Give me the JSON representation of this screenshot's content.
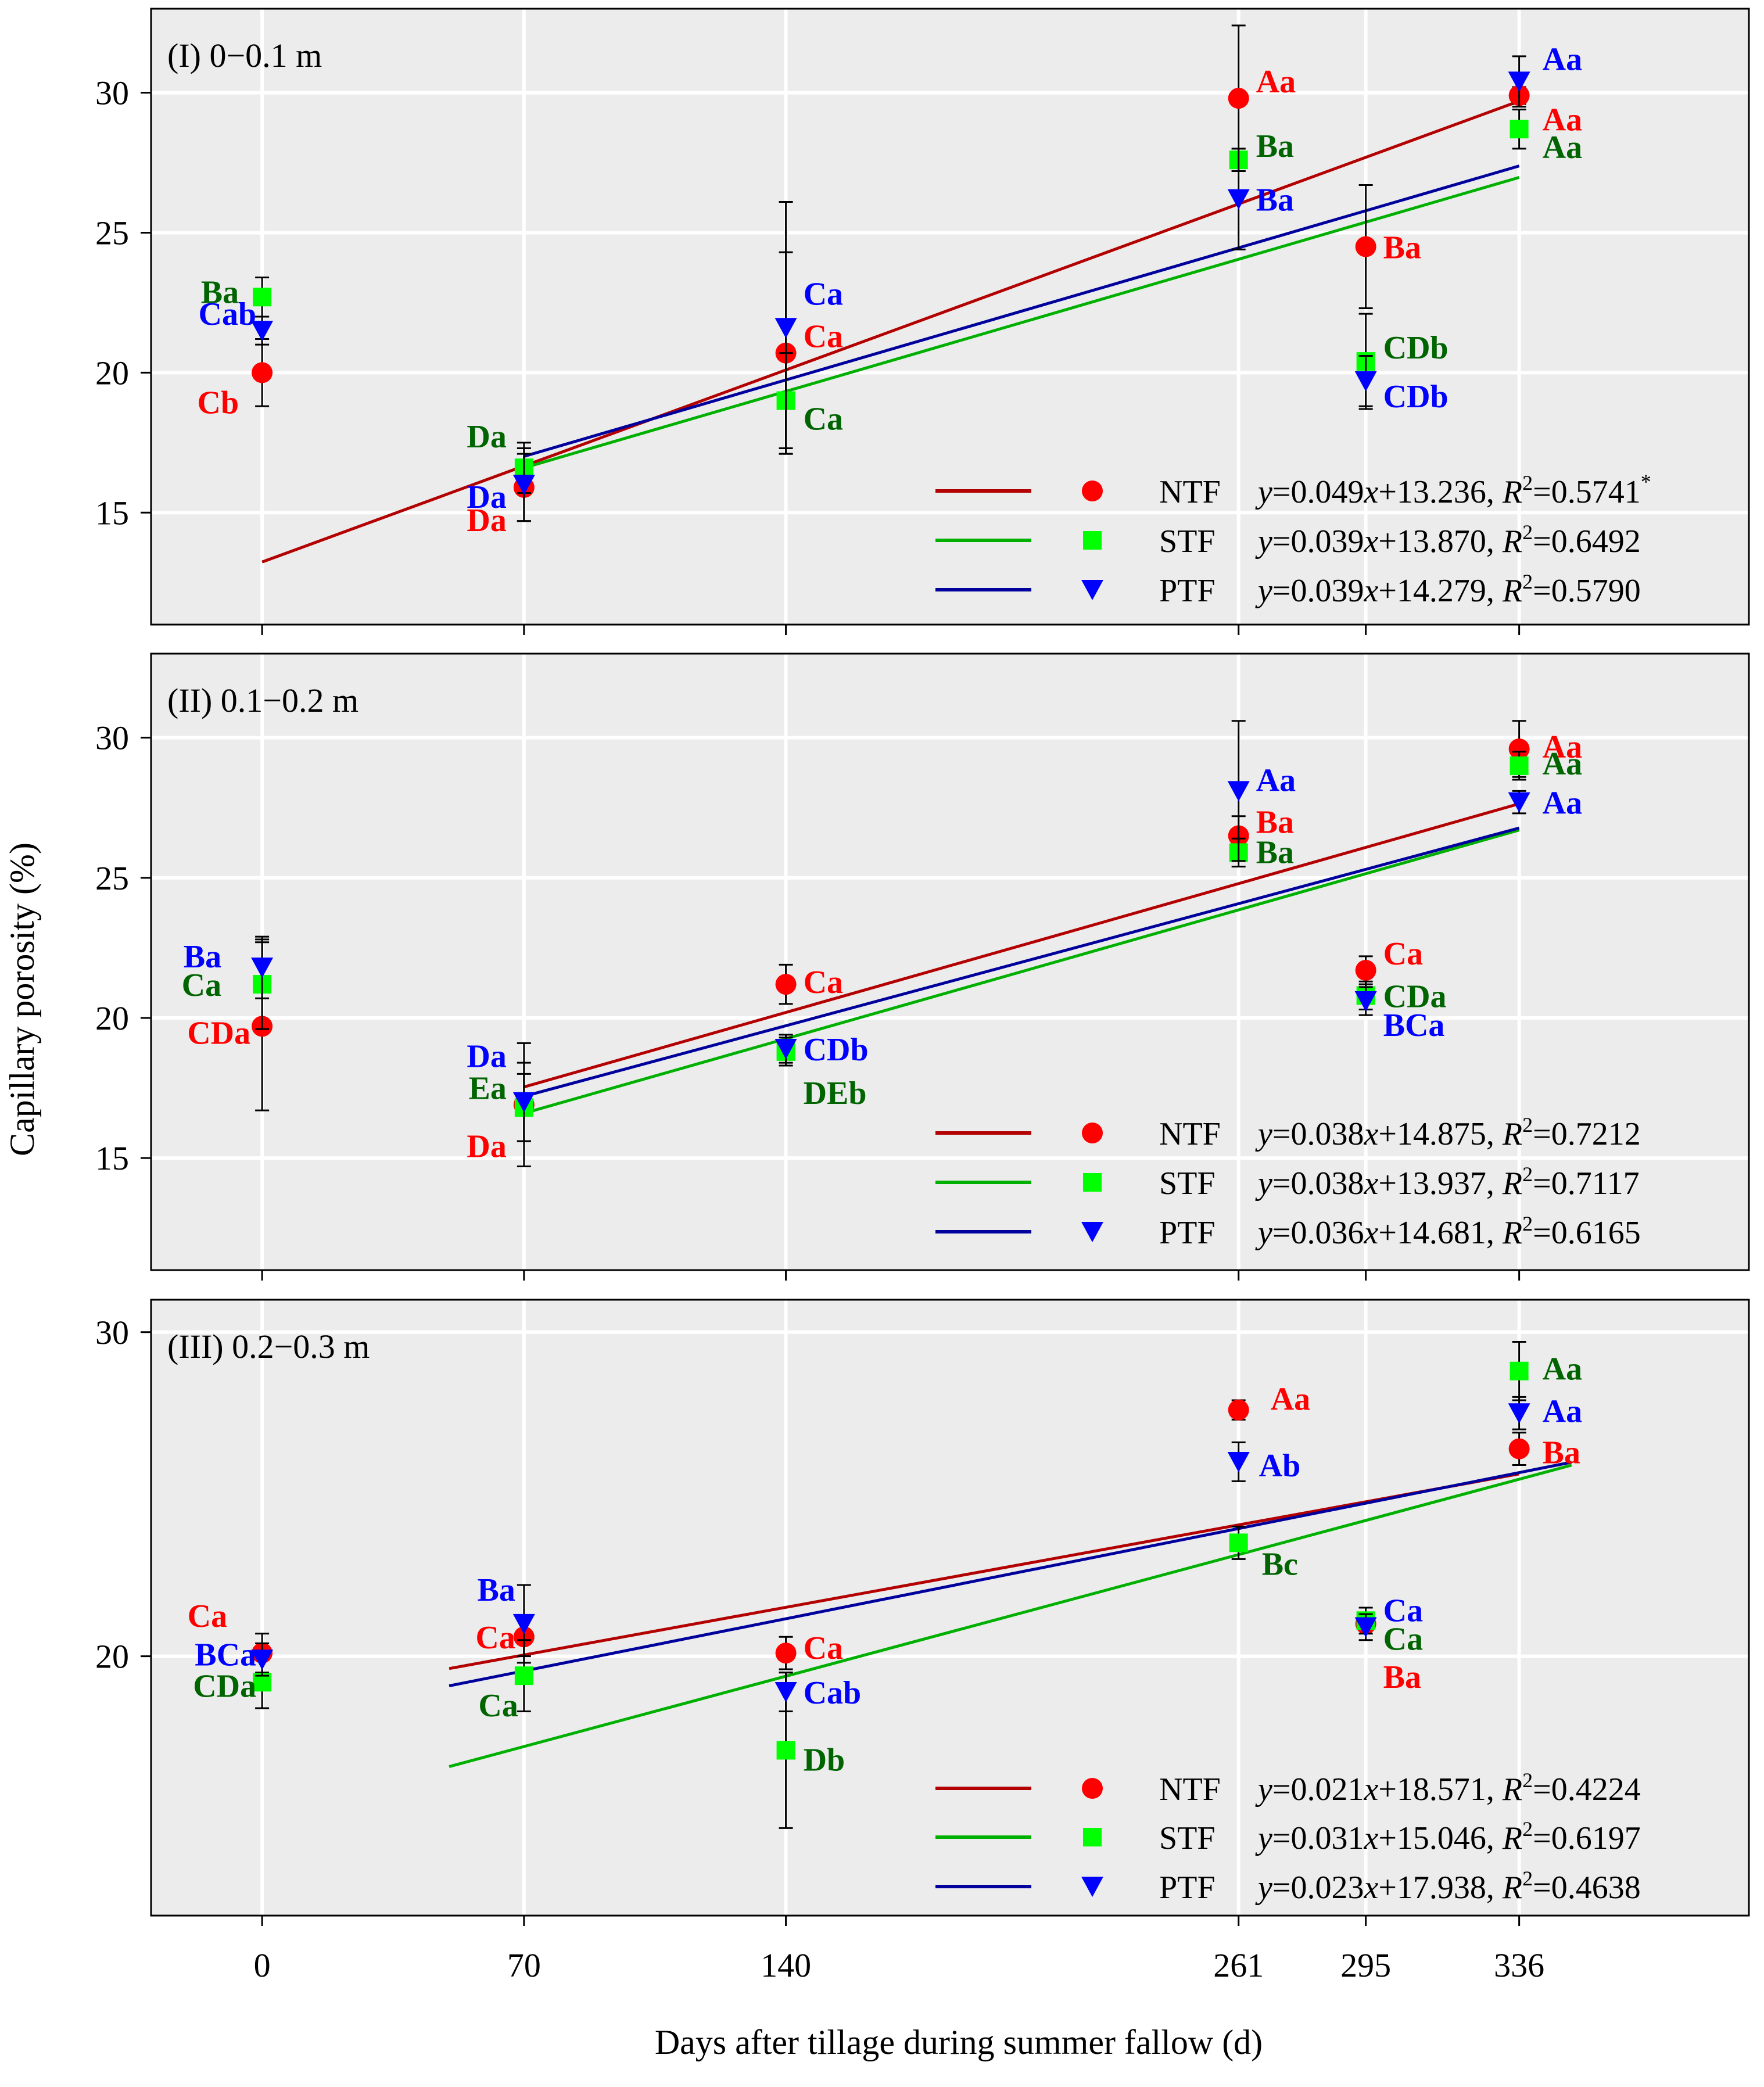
{
  "figure": {
    "ylabel": "Capillary porosity (%)",
    "xlabel": "Days after tillage during summer fallow (d)",
    "xticks": [
      0,
      70,
      140,
      261,
      295,
      336
    ]
  },
  "colors": {
    "plot_bg": "#ececec",
    "grid": "#ffffff",
    "NTF_marker": "#ff0000",
    "NTF_line": "#b30000",
    "STF_marker": "#00ff00",
    "STF_line": "#00b000",
    "PTF_marker": "#0000ff",
    "PTF_line": "#00009c",
    "label_red": "#ff0000",
    "label_green": "#006400",
    "label_blue": "#0000ff"
  },
  "legend_order": [
    "NTF",
    "STF",
    "PTF"
  ],
  "chart_data": [
    {
      "type": "scatter",
      "title": "(I) 0−0.1 m",
      "ylim": [
        11,
        33
      ],
      "yticks": [
        15,
        20,
        25,
        30
      ],
      "x": [
        0,
        70,
        140,
        261,
        295,
        336
      ],
      "series": [
        {
          "name": "NTF",
          "marker": "circle",
          "y": [
            20.0,
            15.9,
            20.7,
            29.8,
            24.5,
            29.9
          ],
          "err": [
            1.2,
            1.2,
            3.6,
            2.6,
            2.2,
            0.3
          ],
          "labels": [
            "Cb",
            "Da",
            "Ca",
            "Aa",
            "Ba",
            "Aa"
          ],
          "fit": {
            "equation": "=0.049x+13.236, R²=0.5741*",
            "slope": 0.049,
            "intercept": 13.236,
            "xrange": [
              0,
              336
            ]
          }
        },
        {
          "name": "STF",
          "marker": "square",
          "y": [
            22.7,
            16.6,
            19.0,
            27.6,
            20.4,
            28.7
          ],
          "err": [
            0.7,
            0.9,
            1.7,
            0.4,
            1.7,
            0.7
          ],
          "labels": [
            "Ba",
            "Da",
            "Ca",
            "Ba",
            "CDb",
            "Aa"
          ],
          "fit": {
            "equation": "=0.039x+13.870, R²=0.6492",
            "slope": 0.039,
            "intercept": 13.87,
            "xrange": [
              70,
              336
            ]
          }
        },
        {
          "name": "PTF",
          "marker": "triangle",
          "y": [
            21.5,
            16.0,
            21.6,
            26.2,
            19.7,
            30.4
          ],
          "err": [
            0.5,
            1.3,
            4.5,
            1.8,
            0.9,
            0.9
          ],
          "labels": [
            "Cab",
            "Da",
            "Ca",
            "Ba",
            "CDb",
            "Aa"
          ],
          "fit": {
            "equation": "=0.039x+14.279, R²=0.5790",
            "slope": 0.039,
            "intercept": 14.279,
            "xrange": [
              70,
              336
            ]
          }
        }
      ]
    },
    {
      "type": "scatter",
      "title": "(II) 0.1−0.2 m",
      "ylim": [
        11,
        33
      ],
      "yticks": [
        15,
        20,
        25,
        30
      ],
      "x": [
        0,
        70,
        140,
        261,
        295,
        336
      ],
      "series": [
        {
          "name": "NTF",
          "marker": "circle",
          "y": [
            19.7,
            16.9,
            21.2,
            26.5,
            21.7,
            29.6
          ],
          "err": [
            3.0,
            2.2,
            0.7,
            0.7,
            0.5,
            1.0
          ],
          "labels": [
            "CDa",
            "Da",
            "Ca",
            "Ba",
            "Ca",
            "Aa"
          ],
          "fit": {
            "equation": "=0.038x+14.875, R²=0.7212",
            "slope": 0.038,
            "intercept": 14.875,
            "xrange": [
              70,
              336
            ]
          }
        },
        {
          "name": "STF",
          "marker": "square",
          "y": [
            21.2,
            16.8,
            18.8,
            25.9,
            20.8,
            29.0
          ],
          "err": [
            1.6,
            1.2,
            0.5,
            0.5,
            0.5,
            0.5
          ],
          "labels": [
            "Ca",
            "Ea",
            "DEb",
            "Ba",
            "CDa",
            "Aa"
          ],
          "fit": {
            "equation": "=0.038x+13.937, R²=0.7117",
            "slope": 0.038,
            "intercept": 13.937,
            "xrange": [
              70,
              336
            ]
          }
        },
        {
          "name": "PTF",
          "marker": "triangle",
          "y": [
            21.8,
            17.0,
            18.9,
            28.1,
            20.6,
            27.7
          ],
          "err": [
            1.1,
            1.4,
            0.5,
            2.5,
            0.5,
            0.4
          ],
          "labels": [
            "Ba",
            "Da",
            "CDb",
            "Aa",
            "BCa",
            "Aa"
          ],
          "fit": {
            "equation": "=0.036x+14.681, R²=0.6165",
            "slope": 0.036,
            "intercept": 14.681,
            "xrange": [
              70,
              336
            ]
          }
        }
      ]
    },
    {
      "type": "scatter",
      "title": "(III) 0.2−0.3 m",
      "ylim": [
        12,
        31
      ],
      "yticks": [
        20,
        30
      ],
      "x": [
        0,
        70,
        140,
        261,
        295,
        336
      ],
      "series": [
        {
          "name": "NTF",
          "marker": "circle",
          "y": [
            20.1,
            20.6,
            20.1,
            27.6,
            21.0,
            26.4
          ],
          "err": [
            0.6,
            0.6,
            0.5,
            0.3,
            0.3,
            0.5
          ],
          "labels": [
            "Ca",
            "Ca",
            "Ca",
            "Aa",
            "Ba",
            "Ba"
          ],
          "fit": {
            "equation": "=0.021x+18.571, R²=0.4224",
            "slope": 0.021,
            "intercept": 18.571,
            "xrange": [
              50,
              336
            ]
          }
        },
        {
          "name": "STF",
          "marker": "square",
          "y": [
            19.2,
            19.4,
            17.1,
            23.5,
            21.1,
            28.8
          ],
          "err": [
            0.8,
            1.1,
            2.4,
            0.5,
            0.4,
            0.9
          ],
          "labels": [
            "CDa",
            "Ca",
            "Db",
            "Bc",
            "Ca",
            "Aa"
          ],
          "fit": {
            "equation": "=0.031x+15.046, R²=0.6197",
            "slope": 0.031,
            "intercept": 15.046,
            "xrange": [
              50,
              350
            ]
          }
        },
        {
          "name": "PTF",
          "marker": "triangle",
          "y": [
            19.9,
            21.0,
            18.9,
            26.0,
            20.9,
            27.5
          ],
          "err": [
            0.5,
            1.2,
            0.6,
            0.6,
            0.4,
            0.5
          ],
          "labels": [
            "BCa",
            "Ba",
            "Cab",
            "Ab",
            "Ca",
            "Aa"
          ],
          "fit": {
            "equation": "=0.023x+17.938, R²=0.4638",
            "slope": 0.023,
            "intercept": 17.938,
            "xrange": [
              50,
              350
            ]
          }
        }
      ]
    }
  ]
}
